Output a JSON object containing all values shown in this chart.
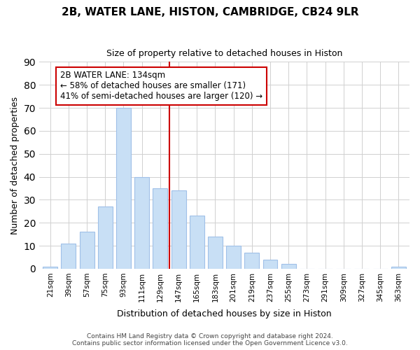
{
  "title": "2B, WATER LANE, HISTON, CAMBRIDGE, CB24 9LR",
  "subtitle": "Size of property relative to detached houses in Histon",
  "xlabel": "Distribution of detached houses by size in Histon",
  "ylabel": "Number of detached properties",
  "bins": [
    "21sqm",
    "39sqm",
    "57sqm",
    "75sqm",
    "93sqm",
    "111sqm",
    "129sqm",
    "147sqm",
    "165sqm",
    "183sqm",
    "201sqm",
    "219sqm",
    "237sqm",
    "255sqm",
    "273sqm",
    "291sqm",
    "309sqm",
    "327sqm",
    "345sqm",
    "363sqm"
  ],
  "values": [
    1,
    11,
    16,
    27,
    70,
    40,
    35,
    34,
    23,
    14,
    10,
    7,
    4,
    2,
    0,
    0,
    0,
    0,
    0,
    1
  ],
  "bar_color": "#c8dff5",
  "bar_edge_color": "#a0c0e8",
  "vline_x": 6.5,
  "vline_color": "#cc0000",
  "annotation_title": "2B WATER LANE: 134sqm",
  "annotation_line1": "← 58% of detached houses are smaller (171)",
  "annotation_line2": "41% of semi-detached houses are larger (120) →",
  "annotation_box_color": "#ffffff",
  "annotation_box_edge": "#cc0000",
  "ylim": [
    0,
    90
  ],
  "yticks": [
    0,
    10,
    20,
    30,
    40,
    50,
    60,
    70,
    80,
    90
  ],
  "footer1": "Contains HM Land Registry data © Crown copyright and database right 2024.",
  "footer2": "Contains public sector information licensed under the Open Government Licence v3.0."
}
